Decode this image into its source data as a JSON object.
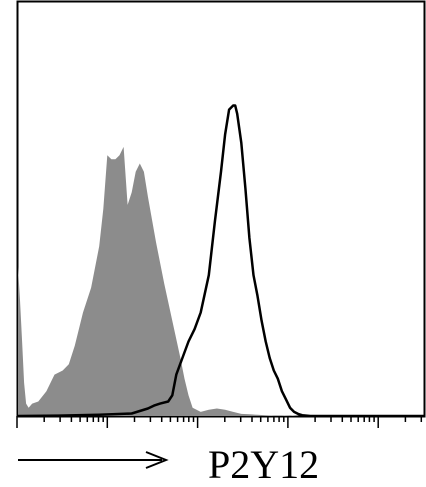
{
  "chart_data": {
    "type": "area",
    "title": "",
    "xlabel": "P2Y12",
    "ylabel": "",
    "x_scale": "log",
    "xlim": [
      0,
      100
    ],
    "ylim": [
      0,
      100
    ],
    "grid": false,
    "legend": "none",
    "series": [
      {
        "style": "filled",
        "color": "#8c8c8c",
        "x": [
          0,
          0.5,
          1.0,
          1.5,
          2.0,
          2.6,
          3.5,
          5,
          7,
          9,
          11,
          12.5,
          14,
          16,
          18,
          20,
          21,
          22,
          23,
          24,
          25,
          26,
          27,
          28,
          29,
          30,
          31,
          32,
          34,
          36,
          38,
          40,
          41,
          42,
          43,
          45,
          47,
          49,
          51,
          53,
          55,
          57,
          59,
          61,
          63,
          65,
          67,
          68,
          69,
          70
        ],
        "y": [
          36,
          28,
          18,
          8,
          3,
          2,
          3,
          3.5,
          6,
          10,
          11,
          12.5,
          17,
          25,
          31,
          41,
          50,
          63,
          62,
          62,
          63,
          65,
          51,
          54,
          59,
          61,
          59,
          53,
          42,
          32,
          23,
          14,
          9,
          5,
          2,
          1,
          1.5,
          1.8,
          1.5,
          1,
          0.5,
          0.4,
          0.3,
          0.2,
          0.1,
          0.1,
          0.2,
          0.1,
          0,
          0
        ]
      },
      {
        "style": "line",
        "color": "#000000",
        "x": [
          0,
          10,
          20,
          28,
          30,
          32,
          33.5,
          35,
          37,
          38,
          39,
          40.5,
          42,
          43.5,
          45,
          47,
          48.5,
          50,
          51,
          52,
          53,
          53.5,
          54,
          55,
          56,
          57,
          58,
          59,
          60,
          61,
          62,
          63,
          64,
          65,
          66,
          67,
          68,
          69,
          70,
          71,
          72,
          73,
          74,
          76,
          80,
          90,
          100
        ],
        "y": [
          0,
          0.1,
          0.3,
          0.6,
          1.2,
          1.8,
          2.5,
          3,
          3.5,
          5,
          10,
          14,
          18,
          21,
          25,
          34,
          47,
          59,
          68,
          74,
          75,
          75,
          73,
          66,
          55,
          43,
          34,
          29,
          23,
          18,
          14,
          11,
          9,
          6,
          4,
          2,
          1,
          0.5,
          0.2,
          0.1,
          0,
          0,
          0,
          0,
          0,
          0,
          0
        ]
      }
    ]
  }
}
